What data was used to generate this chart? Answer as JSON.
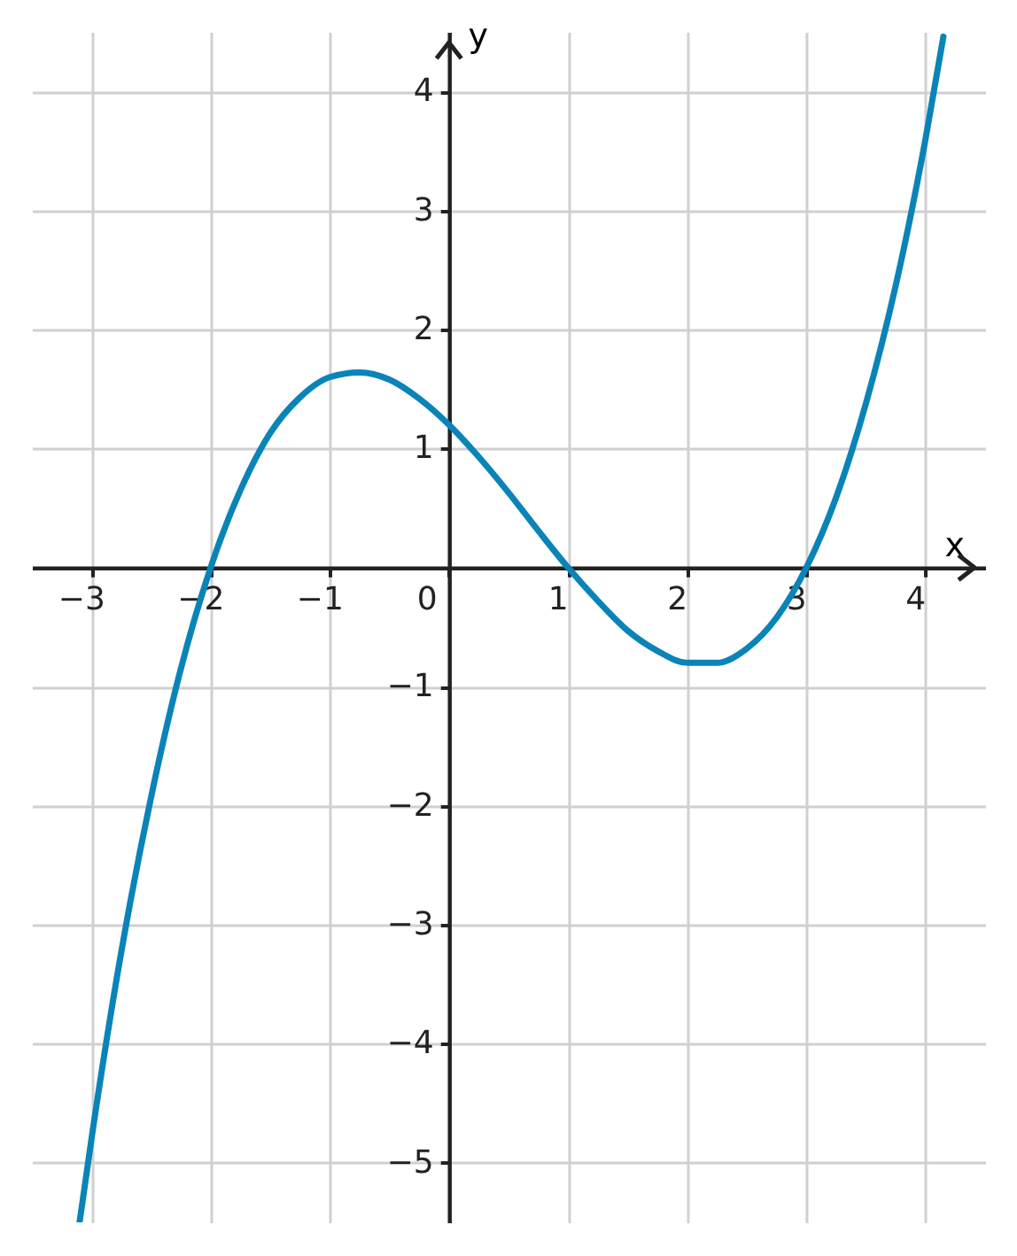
{
  "chart_data": {
    "type": "line",
    "xlabel": "x",
    "ylabel": "y",
    "xlim": [
      -3.5,
      4.5
    ],
    "ylim": [
      -5.5,
      4.5
    ],
    "xticks": [
      {
        "value": -3,
        "label": "−3"
      },
      {
        "value": -2,
        "label": "−2"
      },
      {
        "value": -1,
        "label": "−1"
      },
      0,
      1,
      2,
      3,
      4
    ],
    "yticks": [
      {
        "value": -5,
        "label": "−5"
      },
      {
        "value": -4,
        "label": "−4"
      },
      {
        "value": -3,
        "label": "−3"
      },
      {
        "value": -2,
        "label": "−2"
      },
      {
        "value": -1,
        "label": "−1"
      },
      1,
      2,
      3,
      4
    ],
    "grid": true,
    "marker": "none",
    "line_style": "solid",
    "series": [
      {
        "color": "#0a84b8",
        "x": [
          -3.1,
          -3,
          -2.75,
          -2.5,
          -2.25,
          -2,
          -1.75,
          -1.5,
          -1.25,
          -1,
          -0.75,
          -0.5,
          -0.25,
          0,
          0.25,
          0.5,
          0.75,
          1,
          1.25,
          1.5,
          1.75,
          2,
          2.25,
          2.5,
          2.75,
          3,
          3.25,
          3.5,
          3.75,
          4,
          4.15
        ],
        "values": [
          -5.5,
          -4.8,
          -3.23,
          -1.93,
          -0.85,
          0,
          0.65,
          1.13,
          1.43,
          1.6,
          1.64,
          1.58,
          1.42,
          1.2,
          0.93,
          0.63,
          0.31,
          0,
          -0.28,
          -0.53,
          -0.7,
          -0.8,
          -0.8,
          -0.68,
          -0.42,
          0,
          0.59,
          1.38,
          2.37,
          3.6,
          4.46
        ]
      }
    ]
  }
}
